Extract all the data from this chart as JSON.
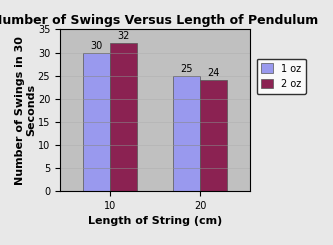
{
  "title": "Number of Swings Versus Length of Pendulum",
  "xlabel": "Length of String (cm)",
  "ylabel": "Number of Swings in 30\nSeconds",
  "categories": [
    10,
    20
  ],
  "series": [
    {
      "label": "1 oz",
      "values": [
        30,
        25
      ],
      "color": "#9999EE"
    },
    {
      "label": "2 oz",
      "values": [
        32,
        24
      ],
      "color": "#8B2252"
    }
  ],
  "ylim": [
    0,
    35
  ],
  "yticks": [
    0,
    5,
    10,
    15,
    20,
    25,
    30,
    35
  ],
  "bar_width": 0.3,
  "plot_bg_color": "#C0C0C0",
  "fig_bg_color": "#E8E8E8",
  "title_fontsize": 9,
  "axis_label_fontsize": 8,
  "tick_fontsize": 7,
  "legend_fontsize": 7,
  "value_label_fontsize": 7,
  "grid_color": "#AAAAAA",
  "figsize": [
    3.33,
    2.45
  ],
  "dpi": 100
}
